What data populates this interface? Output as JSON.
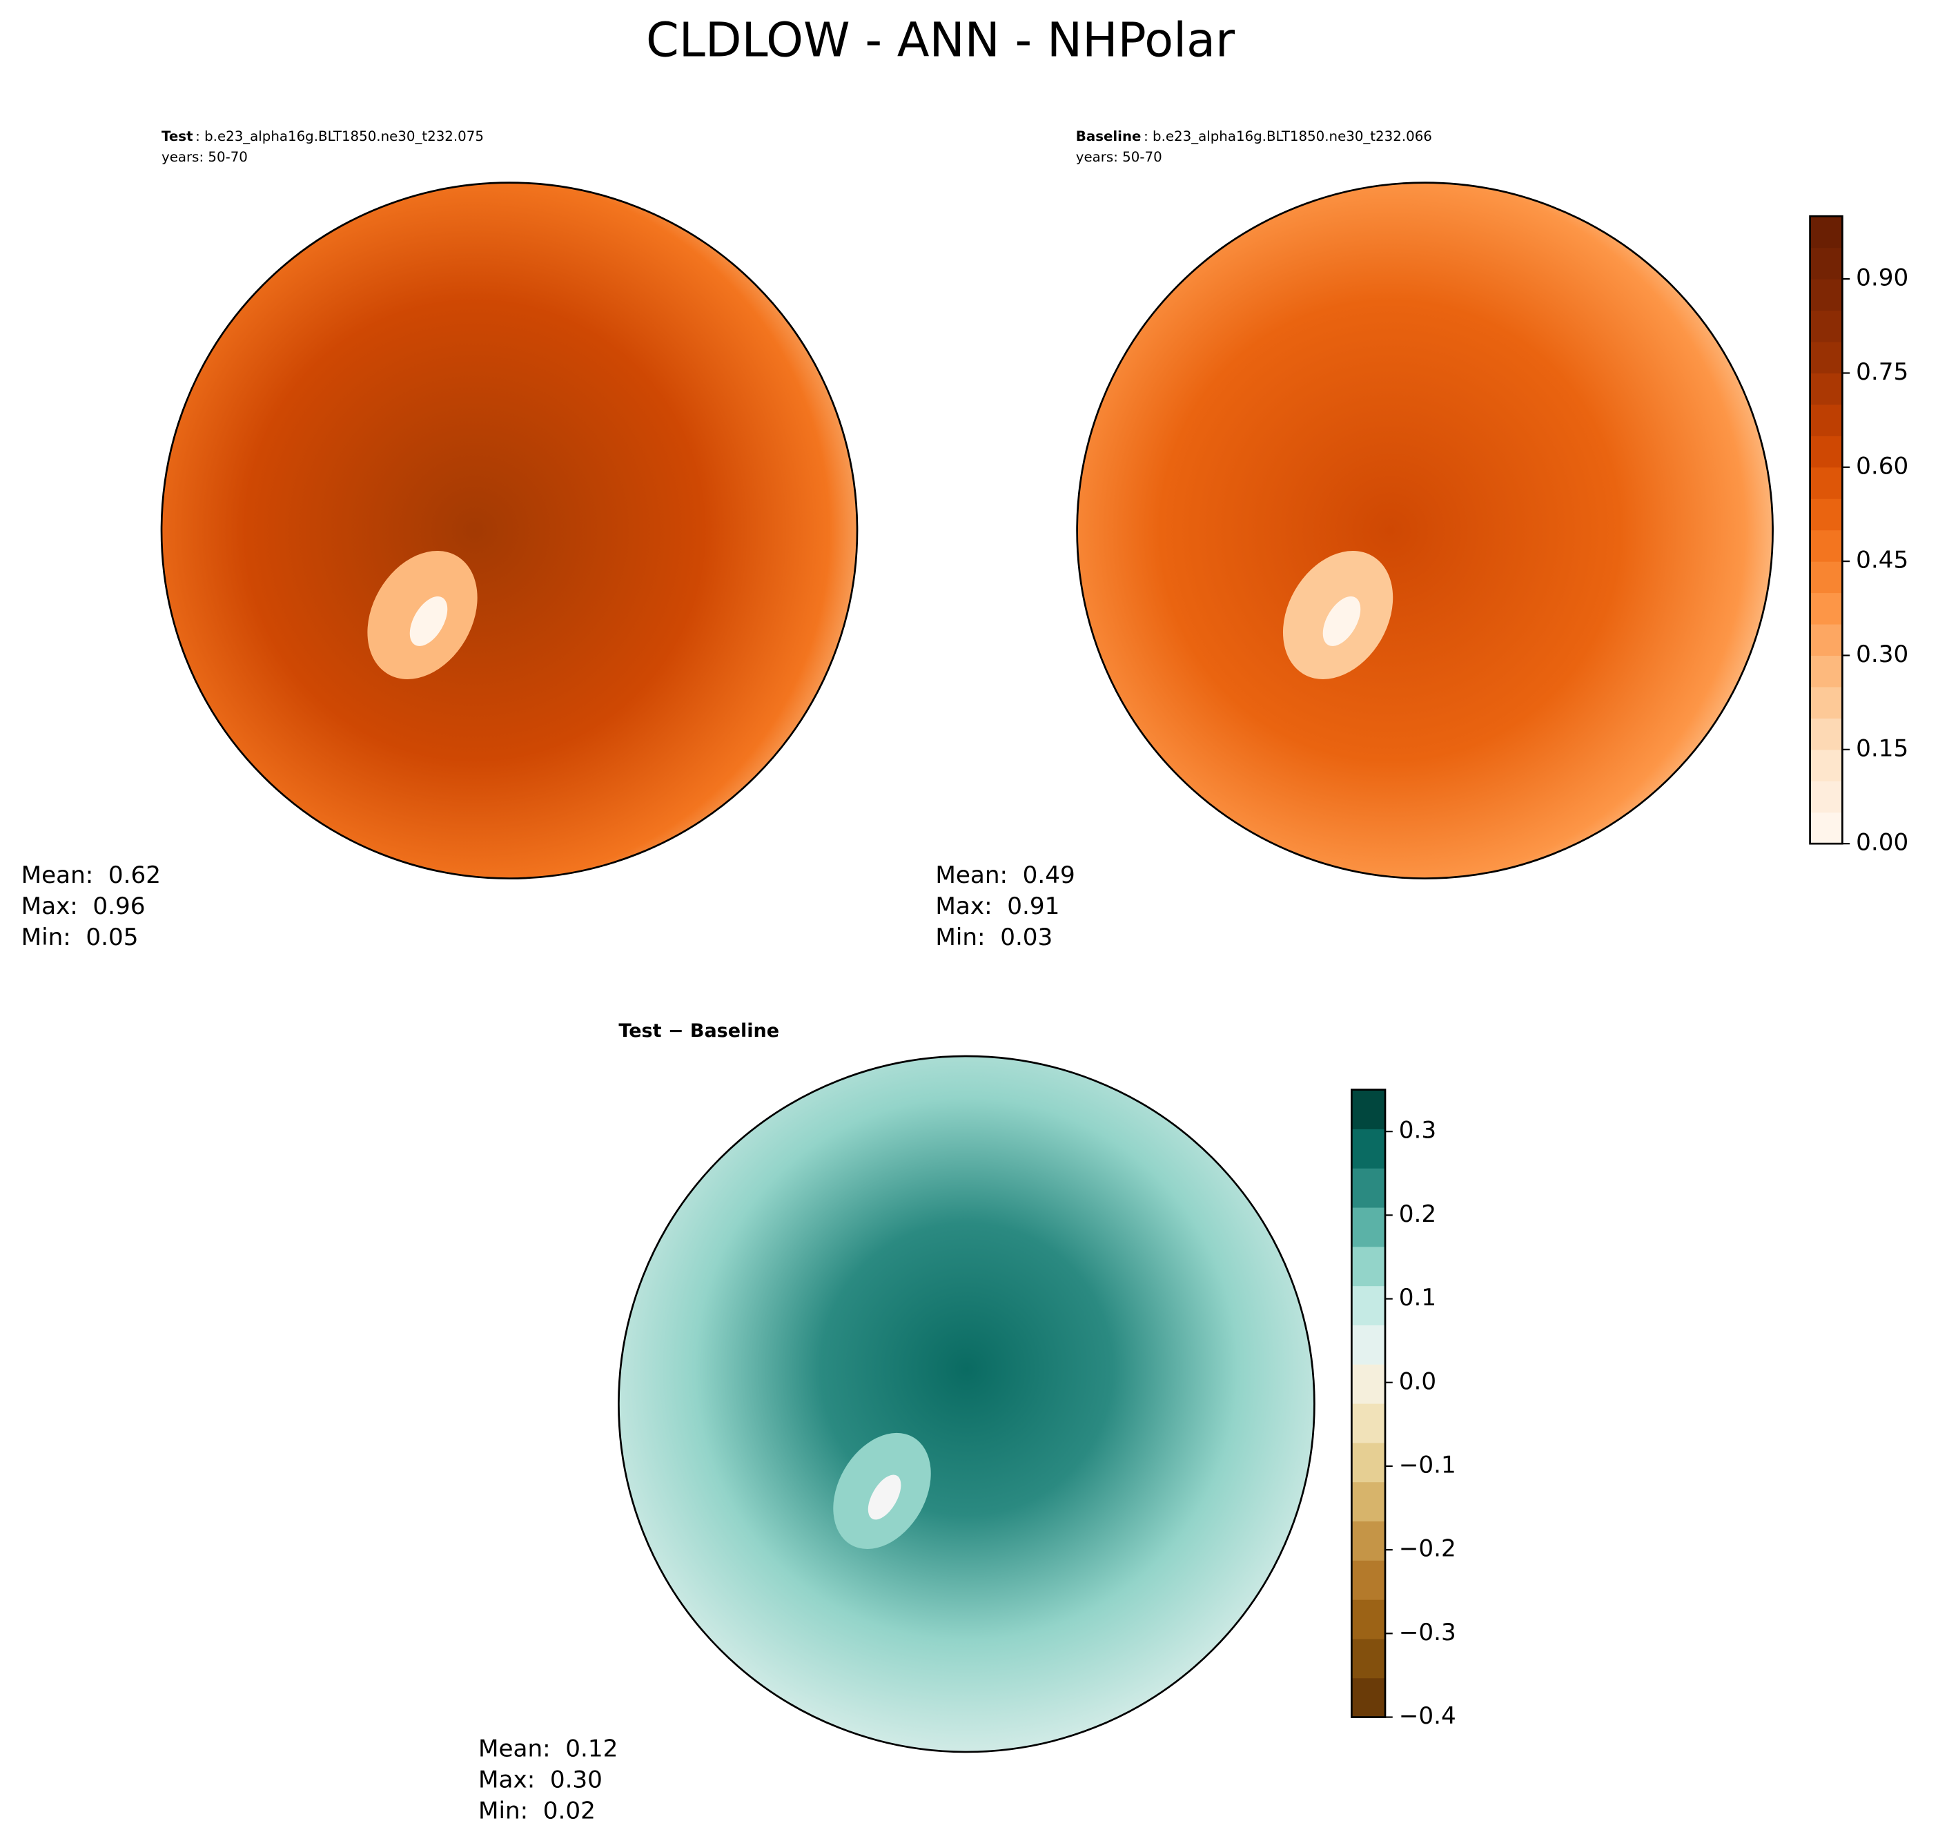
{
  "title": "CLDLOW - ANN - NHPolar",
  "panels": [
    {
      "name": "Test",
      "case": ": b.e23_alpha16g.BLT1850.ne30_t232.075",
      "years": "years: 50-70",
      "stats": [
        {
          "label": "Mean:",
          "value": "0.62"
        },
        {
          "label": "Max:",
          "value": "0.96"
        },
        {
          "label": "Min:",
          "value": "0.05"
        }
      ]
    },
    {
      "name": "Baseline",
      "case": ": b.e23_alpha16g.BLT1850.ne30_t232.066",
      "years": "years: 50-70",
      "stats": [
        {
          "label": "Mean:",
          "value": "0.49"
        },
        {
          "label": "Max:",
          "value": "0.91"
        },
        {
          "label": "Min:",
          "value": "0.03"
        }
      ]
    },
    {
      "name": "Test − Baseline",
      "stats": [
        {
          "label": "Mean:",
          "value": "0.12"
        },
        {
          "label": "Max:",
          "value": "0.30"
        },
        {
          "label": "Min:",
          "value": "0.02"
        }
      ]
    }
  ],
  "colorbars": [
    {
      "ylim": [
        0,
        1
      ],
      "yticks": [
        {
          "value": 0,
          "label": "0.00"
        },
        {
          "value": 0.15,
          "label": "0.15"
        },
        {
          "value": 0.3,
          "label": "0.30"
        },
        {
          "value": 0.45,
          "label": "0.45"
        },
        {
          "value": 0.6,
          "label": "0.60"
        },
        {
          "value": 0.75,
          "label": "0.75"
        },
        {
          "value": 0.9,
          "label": "0.90"
        }
      ],
      "colors": [
        "#fff5eb",
        "#feeddc",
        "#fee6cc",
        "#fdd9b4",
        "#fdc997",
        "#fdb97d",
        "#fda762",
        "#fd9647",
        "#f88531",
        "#f3751f",
        "#ea6410",
        "#de5608",
        "#cf4803",
        "#be3f02",
        "#ab3803",
        "#993103",
        "#8c2c04",
        "#7f2704",
        "#742304",
        "#6a1f03"
      ]
    },
    {
      "ylim": [
        -0.4,
        0.35
      ],
      "yticks": [
        {
          "value": -0.4,
          "label": "−0.4"
        },
        {
          "value": -0.3,
          "label": "−0.3"
        },
        {
          "value": -0.2,
          "label": "−0.2"
        },
        {
          "value": -0.1,
          "label": "−0.1"
        },
        {
          "value": 0,
          "label": "0.0"
        },
        0.1,
        0.2,
        0.3
      ],
      "colors": [
        "#6a3b08",
        "#83500d",
        "#9c6316",
        "#b47a2b",
        "#c59547",
        "#d7b46b",
        "#e6cf93",
        "#f1e2b9",
        "#f5efdc",
        "#e4f2ef",
        "#c5eae4",
        "#93d4c9",
        "#5bb2a7",
        "#2b8a81",
        "#0a6b62",
        "#01473e"
      ]
    }
  ]
}
